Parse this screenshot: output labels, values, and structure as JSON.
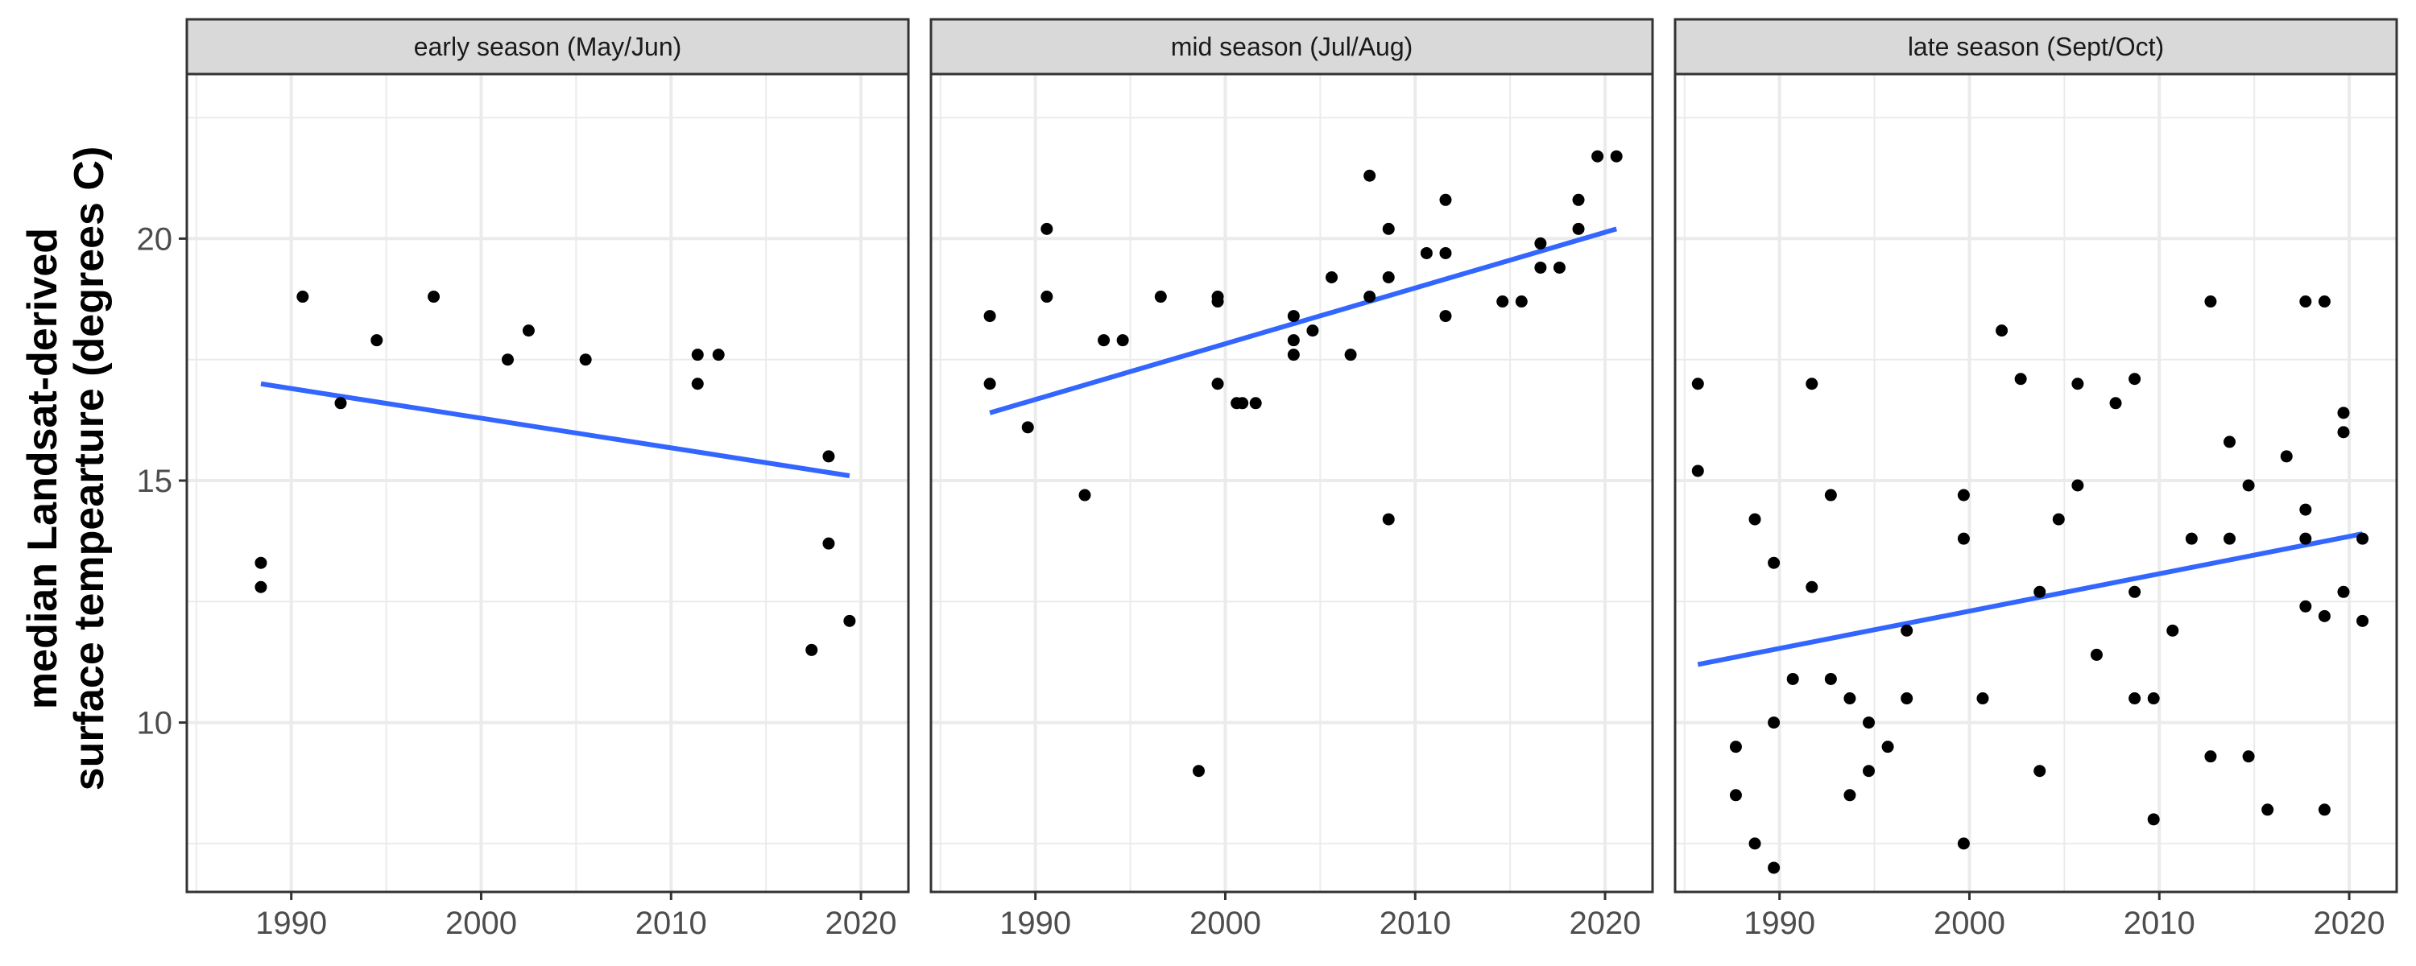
{
  "chart_data": {
    "type": "scatter",
    "ylabel_lines": [
      "median Landsat-derived",
      "surface tempearture (degrees C)"
    ],
    "xlabel": "",
    "xlim": [
      1984.5,
      2022.5
    ],
    "ylim": [
      6.5,
      23.4
    ],
    "x_ticks": [
      1990,
      2000,
      2010,
      2020
    ],
    "y_ticks": [
      10,
      15,
      20
    ],
    "grid": true,
    "colors": {
      "points": "#000000",
      "trend": "#3366ff",
      "strip_fill": "#d9d9d9",
      "panel_border": "#333333",
      "grid": "#ebebeb"
    },
    "panels": [
      {
        "title": "early season (May/Jun)",
        "points": [
          [
            1988.4,
            13.3
          ],
          [
            1988.4,
            12.8
          ],
          [
            1990.6,
            18.8
          ],
          [
            1992.6,
            16.6
          ],
          [
            1994.5,
            17.9
          ],
          [
            1997.5,
            18.8
          ],
          [
            2001.4,
            17.5
          ],
          [
            2002.5,
            18.1
          ],
          [
            2005.5,
            17.5
          ],
          [
            2011.4,
            17.6
          ],
          [
            2011.4,
            17.0
          ],
          [
            2012.5,
            17.6
          ],
          [
            2017.4,
            11.5
          ],
          [
            2018.3,
            15.5
          ],
          [
            2018.3,
            13.7
          ],
          [
            2019.4,
            12.1
          ]
        ],
        "trend": [
          [
            1988.4,
            17.0
          ],
          [
            2019.4,
            15.1
          ]
        ]
      },
      {
        "title": "mid season (Jul/Aug)",
        "points": [
          [
            1987.6,
            18.4
          ],
          [
            1987.6,
            17.0
          ],
          [
            1989.6,
            16.1
          ],
          [
            1990.6,
            20.2
          ],
          [
            1990.6,
            18.8
          ],
          [
            1992.6,
            14.7
          ],
          [
            1993.6,
            17.9
          ],
          [
            1994.6,
            17.9
          ],
          [
            1996.6,
            18.8
          ],
          [
            1998.6,
            9.0
          ],
          [
            1999.6,
            18.8
          ],
          [
            1999.6,
            18.7
          ],
          [
            1999.6,
            17.0
          ],
          [
            2000.6,
            16.6
          ],
          [
            2000.9,
            16.6
          ],
          [
            2001.6,
            16.6
          ],
          [
            2003.6,
            18.4
          ],
          [
            2003.6,
            17.9
          ],
          [
            2003.6,
            17.6
          ],
          [
            2004.6,
            18.1
          ],
          [
            2005.6,
            19.2
          ],
          [
            2006.6,
            17.6
          ],
          [
            2007.6,
            21.3
          ],
          [
            2007.6,
            18.8
          ],
          [
            2008.6,
            20.2
          ],
          [
            2008.6,
            19.2
          ],
          [
            2008.6,
            14.2
          ],
          [
            2010.6,
            19.7
          ],
          [
            2011.6,
            20.8
          ],
          [
            2011.6,
            19.7
          ],
          [
            2011.6,
            18.4
          ],
          [
            2014.6,
            18.7
          ],
          [
            2015.6,
            18.7
          ],
          [
            2016.6,
            19.9
          ],
          [
            2016.6,
            19.4
          ],
          [
            2017.6,
            19.4
          ],
          [
            2018.6,
            20.8
          ],
          [
            2018.6,
            20.2
          ],
          [
            2019.6,
            21.7
          ],
          [
            2020.6,
            21.7
          ]
        ],
        "trend": [
          [
            1987.6,
            16.4
          ],
          [
            2020.6,
            20.2
          ]
        ]
      },
      {
        "title": "late season (Sept/Oct)",
        "points": [
          [
            1985.7,
            17.0
          ],
          [
            1985.7,
            15.2
          ],
          [
            1987.7,
            9.5
          ],
          [
            1987.7,
            8.5
          ],
          [
            1988.7,
            14.2
          ],
          [
            1988.7,
            7.5
          ],
          [
            1989.7,
            13.3
          ],
          [
            1989.7,
            10.0
          ],
          [
            1989.7,
            7.0
          ],
          [
            1990.7,
            10.9
          ],
          [
            1991.7,
            17.0
          ],
          [
            1991.7,
            12.8
          ],
          [
            1992.7,
            14.7
          ],
          [
            1992.7,
            10.9
          ],
          [
            1993.7,
            10.5
          ],
          [
            1993.7,
            8.5
          ],
          [
            1994.7,
            10.0
          ],
          [
            1994.7,
            9.0
          ],
          [
            1995.7,
            9.5
          ],
          [
            1996.7,
            11.9
          ],
          [
            1996.7,
            10.5
          ],
          [
            1999.7,
            14.7
          ],
          [
            1999.7,
            13.8
          ],
          [
            1999.7,
            7.5
          ],
          [
            2000.7,
            10.5
          ],
          [
            2001.7,
            18.1
          ],
          [
            2002.7,
            17.1
          ],
          [
            2003.7,
            12.7
          ],
          [
            2003.7,
            9.0
          ],
          [
            2004.7,
            14.2
          ],
          [
            2005.7,
            17.0
          ],
          [
            2005.7,
            14.9
          ],
          [
            2006.7,
            11.4
          ],
          [
            2007.7,
            16.6
          ],
          [
            2008.7,
            17.1
          ],
          [
            2008.7,
            12.7
          ],
          [
            2008.7,
            10.5
          ],
          [
            2009.7,
            10.5
          ],
          [
            2009.7,
            8.0
          ],
          [
            2010.7,
            11.9
          ],
          [
            2011.7,
            13.8
          ],
          [
            2012.7,
            18.7
          ],
          [
            2012.7,
            9.3
          ],
          [
            2013.7,
            15.8
          ],
          [
            2013.7,
            13.8
          ],
          [
            2014.7,
            14.9
          ],
          [
            2014.7,
            9.3
          ],
          [
            2015.7,
            8.2
          ],
          [
            2016.7,
            15.5
          ],
          [
            2017.7,
            18.7
          ],
          [
            2017.7,
            14.4
          ],
          [
            2017.7,
            13.8
          ],
          [
            2017.7,
            12.4
          ],
          [
            2018.7,
            18.7
          ],
          [
            2018.7,
            12.2
          ],
          [
            2018.7,
            8.2
          ],
          [
            2019.7,
            16.4
          ],
          [
            2019.7,
            16.0
          ],
          [
            2019.7,
            12.7
          ],
          [
            2020.7,
            13.8
          ],
          [
            2020.7,
            12.1
          ]
        ],
        "trend": [
          [
            1985.7,
            11.2
          ],
          [
            2020.7,
            13.9
          ]
        ]
      }
    ]
  }
}
